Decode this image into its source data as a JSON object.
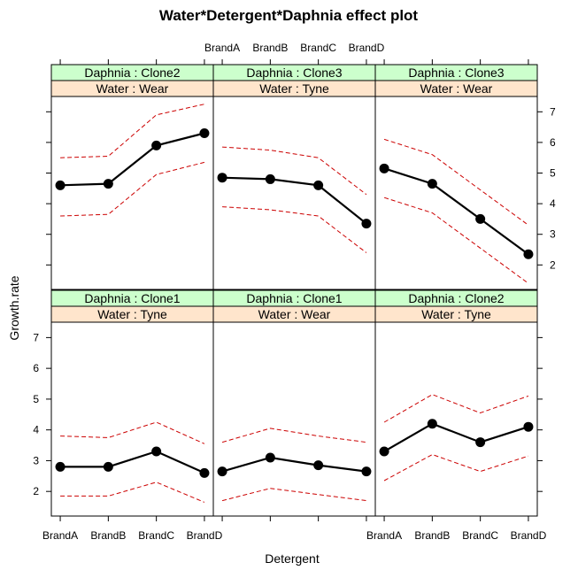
{
  "chart_data": {
    "type": "line",
    "title": "Water*Detergent*Daphnia effect plot",
    "xlabel": "Detergent",
    "ylabel": "Growth.rate",
    "categories": [
      "BrandA",
      "BrandB",
      "BrandC",
      "BrandD"
    ],
    "ylim": [
      1.2,
      7.5
    ],
    "yticks": [
      2,
      3,
      4,
      5,
      6,
      7
    ],
    "colors": {
      "line": "#000000",
      "band": "#cc0000",
      "strip_top": "#ccffcc",
      "strip_bottom": "#ffe5cc",
      "frame": "#000000"
    },
    "panels": [
      {
        "row": 0,
        "col": 0,
        "daphnia_label": "Daphnia : Clone2",
        "water_label": "Water : Wear",
        "fit": [
          4.6,
          4.65,
          5.9,
          6.3
        ],
        "lower": [
          3.6,
          3.65,
          4.95,
          5.35
        ],
        "upper": [
          5.5,
          5.55,
          6.9,
          7.25
        ]
      },
      {
        "row": 0,
        "col": 1,
        "daphnia_label": "Daphnia : Clone3",
        "water_label": "Water : Tyne",
        "fit": [
          4.85,
          4.8,
          4.6,
          3.35
        ],
        "lower": [
          3.9,
          3.8,
          3.6,
          2.4
        ],
        "upper": [
          5.85,
          5.75,
          5.5,
          4.3
        ]
      },
      {
        "row": 0,
        "col": 2,
        "daphnia_label": "Daphnia : Clone3",
        "water_label": "Water : Wear",
        "fit": [
          5.15,
          4.65,
          3.5,
          2.35
        ],
        "lower": [
          4.2,
          3.7,
          2.55,
          1.4
        ],
        "upper": [
          6.1,
          5.6,
          4.45,
          3.3
        ]
      },
      {
        "row": 1,
        "col": 0,
        "daphnia_label": "Daphnia : Clone1",
        "water_label": "Water : Tyne",
        "fit": [
          2.8,
          2.8,
          3.3,
          2.6
        ],
        "lower": [
          1.85,
          1.85,
          2.3,
          1.65
        ],
        "upper": [
          3.8,
          3.75,
          4.25,
          3.55
        ]
      },
      {
        "row": 1,
        "col": 1,
        "daphnia_label": "Daphnia : Clone1",
        "water_label": "Water : Wear",
        "fit": [
          2.65,
          3.1,
          2.85,
          2.65
        ],
        "lower": [
          1.7,
          2.1,
          1.9,
          1.7
        ],
        "upper": [
          3.6,
          4.05,
          3.8,
          3.6
        ]
      },
      {
        "row": 1,
        "col": 2,
        "daphnia_label": "Daphnia : Clone2",
        "water_label": "Water : Tyne",
        "fit": [
          3.3,
          4.2,
          3.6,
          4.1
        ],
        "lower": [
          2.35,
          3.2,
          2.65,
          3.15
        ],
        "upper": [
          4.25,
          5.15,
          4.55,
          5.1
        ]
      }
    ],
    "x_tick_labels": {
      "top": {
        "col": 1,
        "labels": [
          "BrandA",
          "BrandB",
          "BrandC",
          "BrandD"
        ]
      },
      "bottom_left": {
        "col": 0,
        "labels": [
          "BrandA",
          "BrandB",
          "BrandC",
          "BrandD"
        ]
      },
      "bottom_right": {
        "col": 2,
        "labels": [
          "BrandA",
          "BrandB",
          "BrandC",
          "BrandD"
        ]
      }
    },
    "y_tick_labels": {
      "right_top": [
        "2",
        "3",
        "4",
        "5",
        "6",
        "7"
      ],
      "left_bottom": [
        "2",
        "3",
        "4",
        "5",
        "6",
        "7"
      ]
    }
  }
}
